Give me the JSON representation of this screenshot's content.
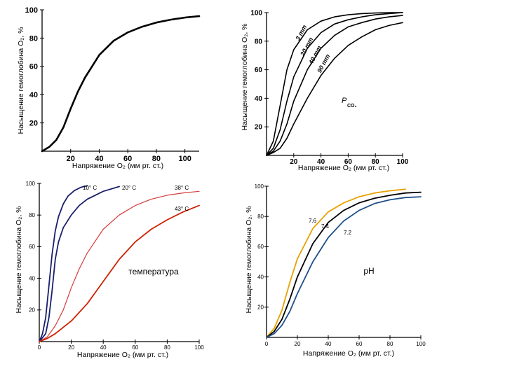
{
  "chart_data": [
    {
      "type": "line",
      "title": "",
      "xlabel": "Напряжение O₂ (мм рт. ст.)",
      "ylabel": "Насыщение гемоглобина O₂, %",
      "xlim": [
        0,
        110
      ],
      "ylim": [
        0,
        100
      ],
      "x_ticks": [
        "20",
        "40",
        "60",
        "80",
        "100"
      ],
      "y_ticks": [
        "20",
        "40",
        "60",
        "80",
        "100"
      ],
      "grid": false,
      "series": [
        {
          "color": "#000000",
          "x": [
            0,
            5,
            10,
            15,
            20,
            25,
            30,
            40,
            50,
            60,
            70,
            80,
            90,
            100,
            110
          ],
          "y": [
            0,
            3,
            8,
            17,
            30,
            42,
            52,
            68,
            78,
            84,
            88,
            91,
            93,
            94.5,
            95.5
          ]
        }
      ]
    },
    {
      "type": "line",
      "title": "",
      "xlabel": "Напряжение O₂ (мм рт. ст.)",
      "ylabel": "Насыщение гемоглобина O₂, %",
      "xlim": [
        0,
        100
      ],
      "ylim": [
        0,
        100
      ],
      "x_ticks": [
        "20",
        "40",
        "60",
        "80",
        "100"
      ],
      "y_ticks": [
        "20",
        "40",
        "60",
        "80",
        "100"
      ],
      "annotation": "P",
      "annotation_sub": "CO₂",
      "grid": false,
      "series": [
        {
          "name": "3 mm",
          "color": "#000000",
          "x": [
            0,
            5,
            10,
            15,
            20,
            30,
            40,
            50,
            60,
            70,
            80,
            90,
            100
          ],
          "y": [
            0,
            10,
            35,
            60,
            74,
            88,
            94,
            97,
            98.5,
            99.3,
            99.7,
            100,
            100
          ]
        },
        {
          "name": "20 mm",
          "color": "#000000",
          "x": [
            0,
            5,
            10,
            15,
            20,
            30,
            40,
            50,
            60,
            70,
            80,
            90,
            100
          ],
          "y": [
            0,
            5,
            18,
            38,
            55,
            75,
            86,
            92,
            95,
            97,
            98.5,
            99.3,
            100
          ]
        },
        {
          "name": "40 mm",
          "color": "#000000",
          "x": [
            0,
            5,
            10,
            15,
            20,
            30,
            40,
            50,
            60,
            70,
            80,
            90,
            100
          ],
          "y": [
            0,
            3,
            10,
            22,
            38,
            60,
            75,
            84,
            90,
            93,
            95.5,
            97,
            98
          ]
        },
        {
          "name": "90 mm",
          "color": "#000000",
          "x": [
            0,
            5,
            10,
            15,
            20,
            30,
            40,
            50,
            60,
            70,
            80,
            90,
            100
          ],
          "y": [
            0,
            2,
            5,
            12,
            22,
            40,
            56,
            68,
            77,
            83,
            88,
            91,
            93
          ]
        }
      ]
    },
    {
      "type": "line",
      "title": "",
      "xlabel": "Напряжение O₂ (мм рт. ст.)",
      "ylabel": "Насыщение гемоглобина O₂, %",
      "xlim": [
        0,
        100
      ],
      "ylim": [
        0,
        100
      ],
      "x_ticks": [
        "0",
        "20",
        "40",
        "60",
        "80",
        "100"
      ],
      "y_ticks": [
        "20",
        "40",
        "60",
        "80",
        "100"
      ],
      "annotation": "температура",
      "grid": false,
      "series": [
        {
          "name": "10° C",
          "color": "#1a1f6e",
          "x": [
            0,
            2,
            4,
            6,
            8,
            10,
            12,
            15,
            18,
            22,
            26,
            30
          ],
          "y": [
            0,
            5,
            15,
            35,
            55,
            70,
            79,
            87,
            92,
            95.5,
            97.5,
            98.5
          ]
        },
        {
          "name": "20° C",
          "color": "#1a1f6e",
          "x": [
            0,
            4,
            6,
            8,
            10,
            12,
            15,
            20,
            25,
            30,
            40,
            50
          ],
          "y": [
            0,
            5,
            15,
            32,
            52,
            63,
            72,
            80,
            86,
            90,
            95,
            98
          ]
        },
        {
          "name": "38° C",
          "color": "#d63a3a",
          "x": [
            0,
            5,
            10,
            15,
            20,
            25,
            30,
            40,
            50,
            60,
            70,
            80,
            90,
            100
          ],
          "y": [
            0,
            3,
            10,
            20,
            34,
            46,
            56,
            71,
            80,
            86,
            90,
            92.5,
            94,
            95
          ]
        },
        {
          "name": "43° C",
          "color": "#cc2200",
          "x": [
            0,
            5,
            10,
            20,
            30,
            40,
            50,
            60,
            70,
            80,
            90,
            100
          ],
          "y": [
            0,
            2,
            5,
            13,
            24,
            38,
            52,
            63,
            71,
            77,
            82,
            86
          ]
        }
      ]
    },
    {
      "type": "line",
      "title": "",
      "xlabel": "Напряжение O₂ (мм рт. ст.)",
      "ylabel": "Насыщение гемоглобина O₂, %",
      "xlim": [
        0,
        100
      ],
      "ylim": [
        0,
        100
      ],
      "x_ticks": [
        "0",
        "20",
        "40",
        "60",
        "80",
        "100"
      ],
      "y_ticks": [
        "20",
        "40",
        "60",
        "80",
        "100"
      ],
      "annotation": "pH",
      "grid": false,
      "series": [
        {
          "name": "7.6",
          "color": "#e8a200",
          "x": [
            0,
            5,
            10,
            15,
            20,
            30,
            40,
            50,
            60,
            70,
            80,
            90
          ],
          "y": [
            0,
            6,
            18,
            36,
            52,
            72,
            83,
            89,
            93,
            95.5,
            97,
            98
          ]
        },
        {
          "name": "7.4",
          "color": "#000000",
          "x": [
            0,
            5,
            10,
            15,
            20,
            30,
            40,
            50,
            60,
            70,
            80,
            90,
            100
          ],
          "y": [
            0,
            4,
            12,
            25,
            40,
            62,
            76,
            84,
            89,
            92,
            94,
            95.5,
            96
          ]
        },
        {
          "name": "7.2",
          "color": "#1f4f8a",
          "x": [
            0,
            5,
            10,
            15,
            20,
            30,
            40,
            50,
            60,
            70,
            80,
            90,
            100
          ],
          "y": [
            0,
            2.5,
            8,
            17,
            29,
            50,
            66,
            77,
            84,
            88.5,
            91,
            92.5,
            93
          ]
        }
      ]
    }
  ]
}
